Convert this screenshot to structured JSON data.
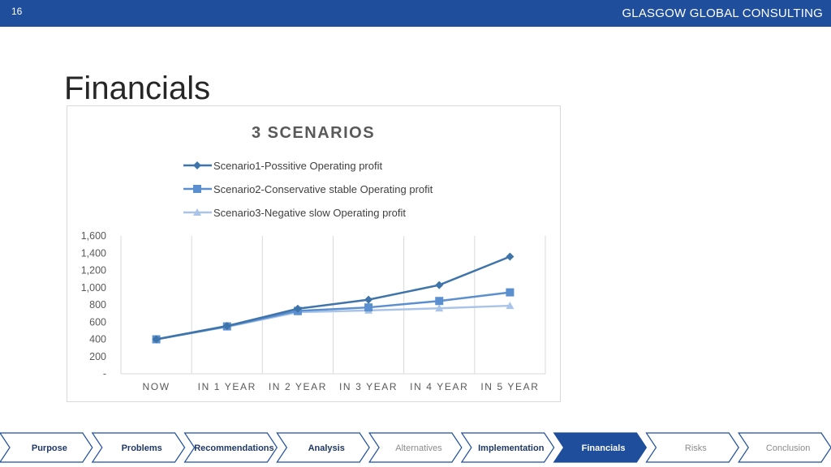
{
  "header": {
    "slide_number": "16",
    "brand": "GLASGOW GLOBAL CONSULTING"
  },
  "page": {
    "title": "Financials"
  },
  "colors": {
    "header_bg": "#1f4e9c",
    "scenario1": "#3e74aa",
    "scenario2": "#5b8fd0",
    "scenario3": "#a9c4e8",
    "nav_active": "#1f4e9c"
  },
  "chart_data": {
    "type": "line",
    "title": "3 SCENARIOS",
    "categories": [
      "NOW",
      "IN 1 YEAR",
      "IN 2 YEAR",
      "IN 3 YEAR",
      "IN 4 YEAR",
      "IN 5 YEAR"
    ],
    "series": [
      {
        "name": "Scenario1-Possitive Operating profit",
        "marker": "diamond",
        "values": [
          400,
          555,
          755,
          860,
          1030,
          1360
        ]
      },
      {
        "name": "Scenario2-Conservative stable Operating profit",
        "marker": "square",
        "values": [
          400,
          550,
          730,
          770,
          845,
          945
        ]
      },
      {
        "name": "Scenario3-Negative slow Operating profit",
        "marker": "triangle",
        "values": [
          400,
          545,
          715,
          735,
          760,
          790
        ]
      }
    ],
    "y_ticks": [
      "-",
      "200",
      "400",
      "600",
      "800",
      "1,000",
      "1,200",
      "1,400",
      "1,600"
    ],
    "ylim": [
      0,
      1600
    ],
    "legend": "top",
    "grid": "vertical"
  },
  "nav": {
    "items": [
      {
        "label": "Purpose",
        "state": "done"
      },
      {
        "label": "Problems",
        "state": "done"
      },
      {
        "label": "Recommendations",
        "state": "done"
      },
      {
        "label": "Analysis",
        "state": "done"
      },
      {
        "label": "Alternatives",
        "state": "todo"
      },
      {
        "label": "Implementation",
        "state": "done"
      },
      {
        "label": "Financials",
        "state": "active"
      },
      {
        "label": "Risks",
        "state": "todo"
      },
      {
        "label": "Conclusion",
        "state": "todo"
      }
    ]
  }
}
